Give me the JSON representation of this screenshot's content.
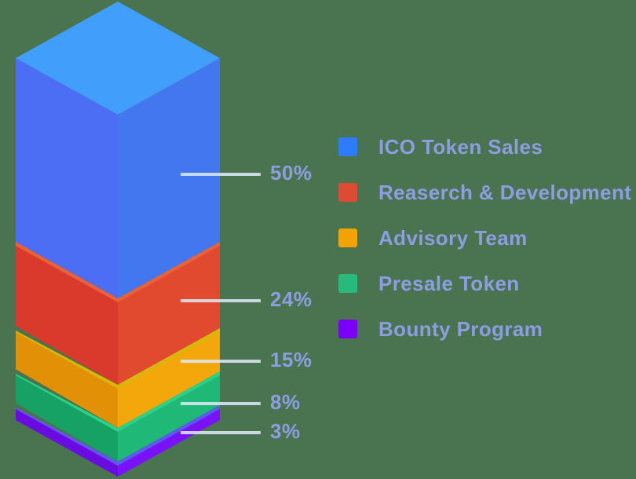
{
  "background_color": "#4A7450",
  "text_color": "#8C9DE2",
  "callout_line_color": "#D9E7F5",
  "chart_data": {
    "type": "bar",
    "subtype": "isometric-3d-stacked-column",
    "title": "",
    "unit": "%",
    "legend_position": "right",
    "total": 100,
    "categories": [
      "ICO Token Sales",
      "Reaserch & Development",
      "Advisory Team",
      "Presale Token",
      "Bounty Program"
    ],
    "values": [
      50,
      24,
      15,
      8,
      3
    ],
    "segments": [
      {
        "label": "ICO Token Sales",
        "value": 50,
        "pct_label": "50%",
        "legend_color": "#2E7BFB",
        "face_top": "#419EFA",
        "face_left": "#4B6EF5",
        "face_right": "#4377F0",
        "edge_highlight": ""
      },
      {
        "label": "Reaserch & Development",
        "value": 24,
        "pct_label": "24%",
        "legend_color": "#DD4B33",
        "face_top": "",
        "face_left": "#D93A2B",
        "face_right": "#E24A30",
        "edge_highlight": "#E8633A"
      },
      {
        "label": "Advisory Team",
        "value": 15,
        "pct_label": "15%",
        "legend_color": "#F2A303",
        "face_top": "",
        "face_left": "#E29006",
        "face_right": "#F3A70B",
        "edge_highlight": "#D8B60B"
      },
      {
        "label": "Presale Token",
        "value": 8,
        "pct_label": "8%",
        "legend_color": "#27BA7C",
        "face_top": "",
        "face_left": "#16A264",
        "face_right": "#20B876",
        "edge_highlight": "#2BD089"
      },
      {
        "label": "Bounty Program",
        "value": 3,
        "pct_label": "3%",
        "legend_color": "#7A00F9",
        "face_top": "",
        "face_left": "#6A0BE2",
        "face_right": "#7A12F9",
        "edge_highlight": "#5C59EE"
      }
    ]
  }
}
